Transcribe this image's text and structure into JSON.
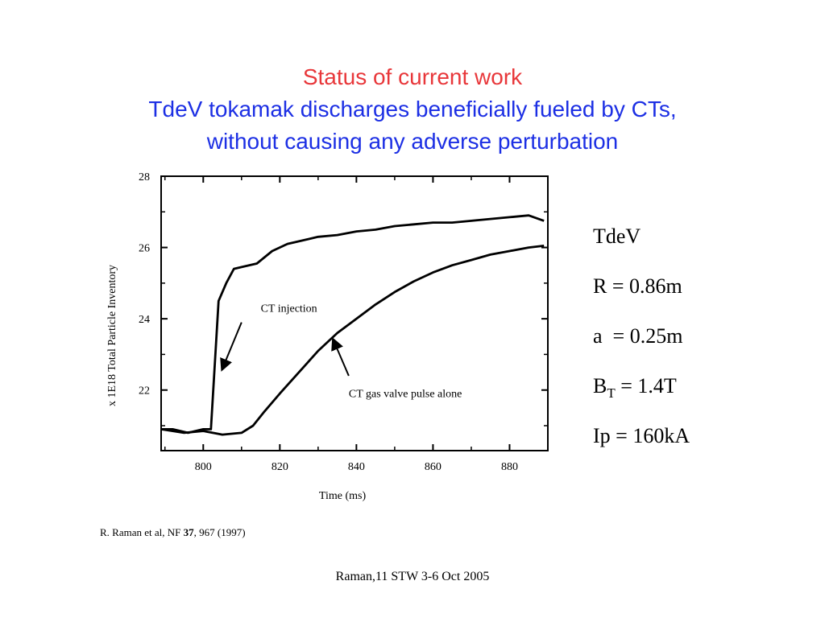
{
  "slide": {
    "title": "Status of current work",
    "subtitle_line1": "TdeV tokamak discharges beneficially fueled by CTs,",
    "subtitle_line2": "without causing any adverse perturbation",
    "footer": "Raman,11 STW 3-6 Oct 2005"
  },
  "params": {
    "device": "TdeV",
    "radius": "R = 0.86m",
    "minor_radius": "a  = 0.25m",
    "field_symbol": "B",
    "field_subscript": "T",
    "field_value": " = 1.4T",
    "current": "Ip = 160kA"
  },
  "citation": {
    "prefix": "R. Raman et al, NF ",
    "volume": "37",
    "suffix": ", 967 (1997)"
  },
  "colors": {
    "title_red": "#e8373a",
    "title_blue": "#1c2fe4",
    "line": "#000000"
  },
  "chart_data": {
    "type": "line",
    "xlabel": "Time (ms)",
    "ylabel": "x 1E18  Total Particle Inventory",
    "xlim": [
      789,
      890
    ],
    "ylim": [
      20.3,
      28
    ],
    "xticks": [
      800,
      820,
      840,
      860,
      880
    ],
    "yticks": [
      22,
      24,
      26,
      28
    ],
    "grid": false,
    "series": [
      {
        "name": "CT injection",
        "x": [
          789,
          792,
          796,
          800,
          802,
          804,
          806,
          808,
          810,
          814,
          818,
          822,
          826,
          830,
          835,
          840,
          845,
          850,
          855,
          860,
          865,
          870,
          875,
          880,
          885,
          889
        ],
        "y": [
          20.9,
          20.9,
          20.8,
          20.9,
          20.9,
          24.5,
          25.0,
          25.4,
          25.45,
          25.55,
          25.9,
          26.1,
          26.2,
          26.3,
          26.35,
          26.45,
          26.5,
          26.6,
          26.65,
          26.7,
          26.7,
          26.75,
          26.8,
          26.85,
          26.9,
          26.75
        ]
      },
      {
        "name": "CT gas valve pulse alone",
        "x": [
          789,
          795,
          800,
          805,
          810,
          813,
          816,
          820,
          825,
          830,
          835,
          840,
          845,
          850,
          855,
          860,
          865,
          870,
          875,
          880,
          885,
          889
        ],
        "y": [
          20.9,
          20.8,
          20.85,
          20.75,
          20.8,
          21.0,
          21.4,
          21.9,
          22.5,
          23.1,
          23.6,
          24.0,
          24.4,
          24.75,
          25.05,
          25.3,
          25.5,
          25.65,
          25.8,
          25.9,
          26.0,
          26.05
        ]
      }
    ],
    "annotations": [
      {
        "text": "CT injection",
        "x": 815,
        "y": 24.2,
        "arrow_from": [
          810,
          23.9
        ],
        "arrow_to": [
          805,
          22.6
        ]
      },
      {
        "text": "CT gas valve pulse alone",
        "x": 838,
        "y": 21.8,
        "arrow_from": [
          838,
          22.4
        ],
        "arrow_to": [
          834,
          23.4
        ]
      }
    ]
  }
}
